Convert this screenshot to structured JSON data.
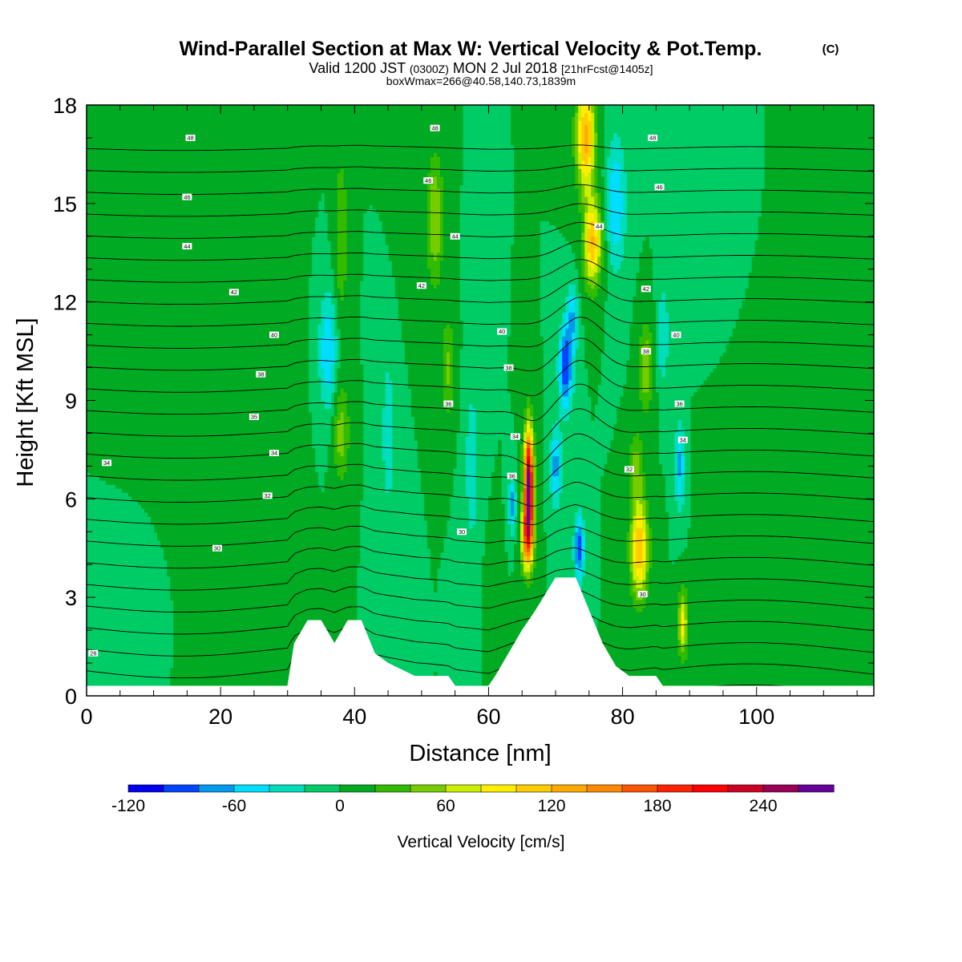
{
  "header": {
    "title": "Wind-Parallel Section at Max W: Vertical Velocity & Pot.Temp.",
    "copyright": "(C)",
    "valid_prefix": "Valid 1200 JST",
    "valid_utc": "(0300Z)",
    "valid_date": "MON 2 Jul 2018",
    "forecast": "[21hrFcst@1405z]",
    "boxinfo": "boxWmax=266@40.58,140.73,1839m"
  },
  "chart_data": {
    "type": "heatmap",
    "title": "Wind-Parallel Section at Max W: Vertical Velocity & Pot.Temp.",
    "xlabel": "Distance [nm]",
    "ylabel": "Height [Kft MSL]",
    "xlim": [
      0,
      117.5
    ],
    "ylim": [
      0,
      18
    ],
    "x_ticks": [
      "0",
      "20",
      "40",
      "60",
      "80",
      "100"
    ],
    "y_ticks": [
      "0",
      "3",
      "6",
      "9",
      "12",
      "15",
      "18"
    ],
    "x_tick_values": [
      0,
      20,
      40,
      60,
      80,
      100
    ],
    "y_tick_values": [
      0,
      3,
      6,
      9,
      12,
      15,
      18
    ],
    "grid": false,
    "background_level": 0,
    "background_color": "#00cc66",
    "terrain": [
      [
        0,
        0.3
      ],
      [
        30,
        0.3
      ],
      [
        31,
        1.6
      ],
      [
        33,
        2.3
      ],
      [
        35,
        2.3
      ],
      [
        37,
        1.6
      ],
      [
        39,
        2.3
      ],
      [
        41,
        2.3
      ],
      [
        43,
        1.3
      ],
      [
        45,
        1.0
      ],
      [
        49,
        0.6
      ],
      [
        54,
        0.6
      ],
      [
        55,
        0.3
      ],
      [
        60,
        0.3
      ],
      [
        61,
        0.6
      ],
      [
        63,
        1.3
      ],
      [
        65,
        2.0
      ],
      [
        67,
        2.6
      ],
      [
        70,
        3.6
      ],
      [
        73,
        3.6
      ],
      [
        75,
        2.6
      ],
      [
        77,
        1.6
      ],
      [
        79,
        0.9
      ],
      [
        81,
        0.6
      ],
      [
        85,
        0.6
      ],
      [
        86,
        0.3
      ],
      [
        117.5,
        0.3
      ]
    ],
    "w_features": [
      {
        "x": 66.0,
        "z": 6.5,
        "w": 266,
        "sx": 0.7,
        "sz": 1.6
      },
      {
        "x": 65.8,
        "z": 4.8,
        "w": 150,
        "sx": 0.9,
        "sz": 1.0
      },
      {
        "x": 74.5,
        "z": 17.0,
        "w": 130,
        "sx": 1.4,
        "sz": 1.6
      },
      {
        "x": 75.5,
        "z": 13.8,
        "w": 120,
        "sx": 1.3,
        "sz": 1.3
      },
      {
        "x": 82.5,
        "z": 4.5,
        "w": 120,
        "sx": 1.3,
        "sz": 1.5
      },
      {
        "x": 83.5,
        "z": 10.0,
        "w": 60,
        "sx": 1.0,
        "sz": 1.3
      },
      {
        "x": 82.0,
        "z": 7.0,
        "w": 50,
        "sx": 1.0,
        "sz": 1.0
      },
      {
        "x": 89.0,
        "z": 2.2,
        "w": 90,
        "sx": 0.7,
        "sz": 1.0
      },
      {
        "x": 71.5,
        "z": 10.0,
        "w": -100,
        "sx": 1.0,
        "sz": 1.3
      },
      {
        "x": 72.5,
        "z": 11.5,
        "w": -60,
        "sx": 0.8,
        "sz": 1.0
      },
      {
        "x": 73.5,
        "z": 4.5,
        "w": -95,
        "sx": 0.7,
        "sz": 1.0
      },
      {
        "x": 63.5,
        "z": 5.8,
        "w": -75,
        "sx": 0.5,
        "sz": 0.8
      },
      {
        "x": 70.0,
        "z": 7.0,
        "w": -70,
        "sx": 0.8,
        "sz": 1.2
      },
      {
        "x": 36.0,
        "z": 10.5,
        "w": -60,
        "sx": 1.3,
        "sz": 1.8
      },
      {
        "x": 38.0,
        "z": 14.0,
        "w": 40,
        "sx": 1.0,
        "sz": 2.5
      },
      {
        "x": 38.0,
        "z": 8.0,
        "w": 50,
        "sx": 1.2,
        "sz": 1.5
      },
      {
        "x": 52.0,
        "z": 14.5,
        "w": 60,
        "sx": 1.2,
        "sz": 2.0
      },
      {
        "x": 54.0,
        "z": 10.0,
        "w": 45,
        "sx": 1.0,
        "sz": 1.5
      },
      {
        "x": 79.0,
        "z": 15.0,
        "w": -60,
        "sx": 1.4,
        "sz": 2.0
      },
      {
        "x": 88.5,
        "z": 7.0,
        "w": -65,
        "sx": 0.7,
        "sz": 1.3
      },
      {
        "x": 86.0,
        "z": 11.0,
        "w": -40,
        "sx": 0.8,
        "sz": 1.5
      },
      {
        "x": 57.5,
        "z": 7.0,
        "w": -30,
        "sx": 1.2,
        "sz": 3.0
      },
      {
        "x": 45.0,
        "z": 8.0,
        "w": -25,
        "sx": 1.5,
        "sz": 4.0
      },
      {
        "x": 20.0,
        "z": 9.0,
        "w": 12,
        "sx": 7.0,
        "sz": 5.0
      },
      {
        "x": 8.0,
        "z": 13.0,
        "w": 14,
        "sx": 5.0,
        "sz": 4.0
      },
      {
        "x": 5.0,
        "z": 3.0,
        "w": -10,
        "sx": 5.0,
        "sz": 2.0
      },
      {
        "x": 100.0,
        "z": 8.0,
        "w": 10,
        "sx": 5.0,
        "sz": 5.0
      },
      {
        "x": 110.0,
        "z": 3.0,
        "w": 12,
        "sx": 4.0,
        "sz": 3.0
      },
      {
        "x": 95.0,
        "z": 14.0,
        "w": -12,
        "sx": 4.0,
        "sz": 3.0
      },
      {
        "x": 28.0,
        "z": 3.0,
        "w": 14,
        "sx": 3.0,
        "sz": 1.5
      },
      {
        "x": 47.0,
        "z": 15.0,
        "w": 12,
        "sx": 2.0,
        "sz": 3.0
      },
      {
        "x": 60.5,
        "z": 3.0,
        "w": 15,
        "sx": 1.0,
        "sz": 1.5
      }
    ],
    "theta_contours": {
      "interval": 1,
      "range": [
        25,
        50
      ],
      "labels": [
        {
          "x": 1.0,
          "z": 1.3,
          "text": "26"
        },
        {
          "x": 3.0,
          "z": 7.1,
          "text": "34"
        },
        {
          "x": 19.5,
          "z": 4.5,
          "text": "30"
        },
        {
          "x": 27.0,
          "z": 6.1,
          "text": "32"
        },
        {
          "x": 28.0,
          "z": 7.4,
          "text": "34"
        },
        {
          "x": 25.0,
          "z": 8.5,
          "text": "35"
        },
        {
          "x": 26.0,
          "z": 9.8,
          "text": "38"
        },
        {
          "x": 28.0,
          "z": 11.0,
          "text": "40"
        },
        {
          "x": 22.0,
          "z": 12.3,
          "text": "42"
        },
        {
          "x": 15.0,
          "z": 13.7,
          "text": "44"
        },
        {
          "x": 15.0,
          "z": 15.2,
          "text": "46"
        },
        {
          "x": 15.5,
          "z": 17.0,
          "text": "48"
        },
        {
          "x": 56.0,
          "z": 5.0,
          "text": "30"
        },
        {
          "x": 54.0,
          "z": 8.9,
          "text": "36"
        },
        {
          "x": 50.0,
          "z": 12.5,
          "text": "42"
        },
        {
          "x": 55.0,
          "z": 14.0,
          "text": "44"
        },
        {
          "x": 51.0,
          "z": 15.7,
          "text": "46"
        },
        {
          "x": 52.0,
          "z": 17.3,
          "text": "48"
        },
        {
          "x": 63.0,
          "z": 10.0,
          "text": "38"
        },
        {
          "x": 62.0,
          "z": 11.1,
          "text": "40"
        },
        {
          "x": 64.0,
          "z": 7.9,
          "text": "34"
        },
        {
          "x": 63.5,
          "z": 6.7,
          "text": "36"
        },
        {
          "x": 76.5,
          "z": 14.3,
          "text": "44"
        },
        {
          "x": 83.5,
          "z": 12.4,
          "text": "42"
        },
        {
          "x": 88.0,
          "z": 11.0,
          "text": "40"
        },
        {
          "x": 83.5,
          "z": 10.5,
          "text": "38"
        },
        {
          "x": 88.5,
          "z": 8.9,
          "text": "36"
        },
        {
          "x": 89.0,
          "z": 7.8,
          "text": "34"
        },
        {
          "x": 81.0,
          "z": 6.9,
          "text": "32"
        },
        {
          "x": 83.0,
          "z": 3.1,
          "text": "30"
        },
        {
          "x": 85.5,
          "z": 15.5,
          "text": "46"
        },
        {
          "x": 84.5,
          "z": 17.0,
          "text": "48"
        }
      ]
    },
    "colorbar": {
      "label": "Vertical Velocity [cm/s]",
      "min": -120,
      "max": 280,
      "step": 20,
      "colors": [
        "#0000ee",
        "#0044ff",
        "#0099ee",
        "#00ddff",
        "#00ddbb",
        "#00cc66",
        "#00aa22",
        "#33bb00",
        "#77cc00",
        "#ccee00",
        "#ffee00",
        "#ffcc00",
        "#ffaa00",
        "#ff8800",
        "#ff5500",
        "#ff2200",
        "#ff0000",
        "#cc0022",
        "#990055",
        "#660099"
      ],
      "tick_values": [
        -120,
        -60,
        0,
        60,
        120,
        180,
        240
      ],
      "tick_labels": [
        "-120",
        "-60",
        "0",
        "60",
        "120",
        "180",
        "240"
      ]
    }
  }
}
